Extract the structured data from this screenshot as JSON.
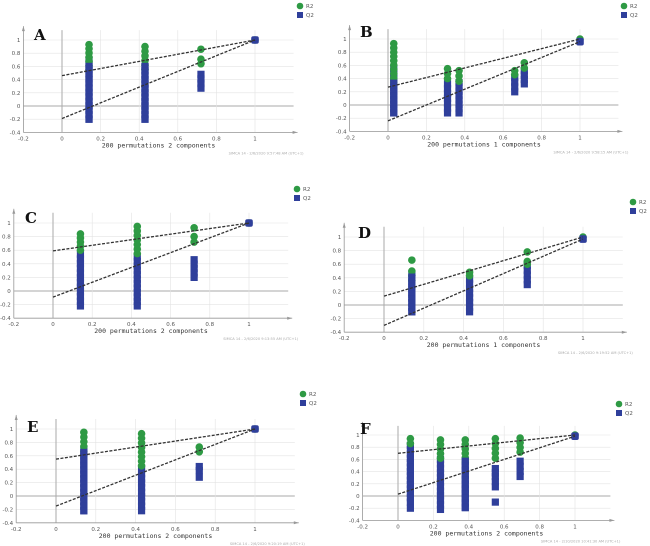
{
  "figure_title": "",
  "colors": {
    "r2": "#2e9a44",
    "q2": "#2f3f9b",
    "grid": "#e3e3e3",
    "axis": "#999999",
    "line": "#333333"
  },
  "legend": {
    "r2_label": "R2",
    "q2_label": "Q2"
  },
  "chart_data": [
    {
      "panel": "A",
      "type": "scatter",
      "xlabel": "200 permutations 2 components",
      "watermark": "SIMCA 14 - 2/6/2020 9:57:48 AM (UTC+1)",
      "xlim": [
        -0.2,
        1.2
      ],
      "ylim": [
        -0.4,
        1.15
      ],
      "xticks": [
        "-0.2",
        "0",
        "0.2",
        "0.4",
        "0.6",
        "0.8",
        "1"
      ],
      "yticks": [
        "-0.4",
        "-0.2",
        "0",
        "0.2",
        "0.4",
        "0.6",
        "0.8",
        "1"
      ],
      "legend_position": "top-right",
      "r2_intercept": 0.46,
      "q2_intercept": -0.19,
      "series": [
        {
          "name": "R2",
          "clusters": [
            {
              "x": 0.14,
              "ymin": 0.55,
              "ymax": 0.93
            },
            {
              "x": 0.43,
              "ymin": 0.55,
              "ymax": 0.9
            },
            {
              "x": 0.72,
              "ymin": 0.64,
              "ymax": 0.71
            },
            {
              "x": 0.72,
              "ymin": 0.86,
              "ymax": 0.86
            },
            {
              "x": 1.0,
              "ymin": 1.0,
              "ymax": 1.0
            }
          ]
        },
        {
          "name": "Q2",
          "clusters": [
            {
              "x": 0.14,
              "ymin": -0.2,
              "ymax": 0.7
            },
            {
              "x": 0.43,
              "ymin": -0.2,
              "ymax": 0.6
            },
            {
              "x": 0.72,
              "ymin": 0.27,
              "ymax": 0.48
            },
            {
              "x": 1.0,
              "ymin": 1.0,
              "ymax": 1.0
            }
          ]
        }
      ]
    },
    {
      "panel": "B",
      "type": "scatter",
      "xlabel": "200 permutations 1 components",
      "watermark": "SIMCA 14 - 2/6/2020 9:58:15 AM (UTC+1)",
      "xlim": [
        -0.2,
        1.2
      ],
      "ylim": [
        -0.4,
        1.15
      ],
      "xticks": [
        "-0.2",
        "0",
        "0.2",
        "0.4",
        "0.6",
        "0.8",
        "1"
      ],
      "yticks": [
        "-0.4",
        "-0.2",
        "0",
        "0.2",
        "0.4",
        "0.6",
        "0.8",
        "1"
      ],
      "legend_position": "top-right",
      "r2_intercept": 0.27,
      "q2_intercept": -0.24,
      "series": [
        {
          "name": "R2",
          "clusters": [
            {
              "x": 0.03,
              "ymin": 0.28,
              "ymax": 0.93
            },
            {
              "x": 0.31,
              "ymin": 0.4,
              "ymax": 0.55
            },
            {
              "x": 0.37,
              "ymin": 0.36,
              "ymax": 0.52
            },
            {
              "x": 0.66,
              "ymin": 0.46,
              "ymax": 0.52
            },
            {
              "x": 0.71,
              "ymin": 0.56,
              "ymax": 0.64
            },
            {
              "x": 1.0,
              "ymin": 1.0,
              "ymax": 1.0
            }
          ]
        },
        {
          "name": "Q2",
          "clusters": [
            {
              "x": 0.03,
              "ymin": -0.12,
              "ymax": 0.55
            },
            {
              "x": 0.31,
              "ymin": -0.12,
              "ymax": 0.32
            },
            {
              "x": 0.37,
              "ymin": -0.12,
              "ymax": 0.34
            },
            {
              "x": 0.66,
              "ymin": 0.2,
              "ymax": 0.42
            },
            {
              "x": 0.71,
              "ymin": 0.32,
              "ymax": 0.52
            },
            {
              "x": 1.0,
              "ymin": 0.96,
              "ymax": 0.96
            }
          ]
        }
      ]
    },
    {
      "panel": "C",
      "type": "scatter",
      "xlabel": "200 permutations 2 components",
      "watermark": "SIMCA 14 - 2/6/2020 9:13:55 AM (UTC+1)",
      "xlim": [
        -0.2,
        1.2
      ],
      "ylim": [
        -0.4,
        1.15
      ],
      "xticks": [
        "-0.2",
        "0",
        "0.2",
        "0.4",
        "0.6",
        "0.8",
        "1"
      ],
      "yticks": [
        "-0.4",
        "-0.2",
        "0",
        "0.2",
        "0.4",
        "0.6",
        "0.8",
        "1"
      ],
      "legend_position": "top-right",
      "r2_intercept": 0.59,
      "q2_intercept": -0.09,
      "series": [
        {
          "name": "R2",
          "clusters": [
            {
              "x": 0.14,
              "ymin": 0.6,
              "ymax": 0.84
            },
            {
              "x": 0.43,
              "ymin": 0.55,
              "ymax": 0.95
            },
            {
              "x": 0.72,
              "ymin": 0.72,
              "ymax": 0.8
            },
            {
              "x": 0.72,
              "ymin": 0.93,
              "ymax": 0.93
            },
            {
              "x": 1.0,
              "ymin": 1.0,
              "ymax": 1.0
            }
          ]
        },
        {
          "name": "Q2",
          "clusters": [
            {
              "x": 0.14,
              "ymin": -0.22,
              "ymax": 0.54
            },
            {
              "x": 0.43,
              "ymin": -0.22,
              "ymax": 0.5
            },
            {
              "x": 0.72,
              "ymin": 0.2,
              "ymax": 0.46
            },
            {
              "x": 1.0,
              "ymin": 1.0,
              "ymax": 1.0
            }
          ]
        }
      ]
    },
    {
      "panel": "D",
      "type": "scatter",
      "xlabel": "200 permutations 1 components",
      "watermark": "SIMCA 14 - 2/6/2020 9:19:52 AM (UTC+1)",
      "xlim": [
        -0.2,
        1.2
      ],
      "ylim": [
        -0.4,
        1.15
      ],
      "xticks": [
        "-0.2",
        "0",
        "0.2",
        "0.4",
        "0.6",
        "0.8",
        "1"
      ],
      "yticks": [
        "-0.4",
        "-0.2",
        "0",
        "0.2",
        "0.4",
        "0.6",
        "0.8",
        "1"
      ],
      "legend_position": "top-right",
      "r2_intercept": 0.13,
      "q2_intercept": -0.3,
      "series": [
        {
          "name": "R2",
          "clusters": [
            {
              "x": 0.14,
              "ymin": 0.36,
              "ymax": 0.5
            },
            {
              "x": 0.14,
              "ymin": 0.66,
              "ymax": 0.66
            },
            {
              "x": 0.43,
              "ymin": 0.43,
              "ymax": 0.48
            },
            {
              "x": 0.72,
              "ymin": 0.6,
              "ymax": 0.64
            },
            {
              "x": 0.72,
              "ymin": 0.78,
              "ymax": 0.78
            },
            {
              "x": 1.0,
              "ymin": 1.0,
              "ymax": 1.0
            }
          ]
        },
        {
          "name": "Q2",
          "clusters": [
            {
              "x": 0.14,
              "ymin": -0.1,
              "ymax": 0.46
            },
            {
              "x": 0.43,
              "ymin": -0.1,
              "ymax": 0.38
            },
            {
              "x": 0.72,
              "ymin": 0.3,
              "ymax": 0.58
            },
            {
              "x": 1.0,
              "ymin": 0.97,
              "ymax": 0.97
            }
          ]
        }
      ]
    },
    {
      "panel": "E",
      "type": "scatter",
      "xlabel": "200 permutations 2 components",
      "watermark": "SIMCA 14 - 2/6/2020 9:20:19 AM (UTC+1)",
      "xlim": [
        -0.2,
        1.2
      ],
      "ylim": [
        -0.4,
        1.15
      ],
      "xticks": [
        "-0.2",
        "0",
        "0.2",
        "0.4",
        "0.6",
        "0.8",
        "1"
      ],
      "yticks": [
        "-0.4",
        "-0.2",
        "0",
        "0.2",
        "0.4",
        "0.6",
        "0.8",
        "1"
      ],
      "legend_position": "top-right",
      "r2_intercept": 0.55,
      "q2_intercept": -0.15,
      "series": [
        {
          "name": "R2",
          "clusters": [
            {
              "x": 0.14,
              "ymin": 0.6,
              "ymax": 0.95
            },
            {
              "x": 0.43,
              "ymin": 0.45,
              "ymax": 0.93
            },
            {
              "x": 0.72,
              "ymin": 0.66,
              "ymax": 0.73
            },
            {
              "x": 1.0,
              "ymin": 1.0,
              "ymax": 1.0
            }
          ]
        },
        {
          "name": "Q2",
          "clusters": [
            {
              "x": 0.14,
              "ymin": -0.22,
              "ymax": 0.68
            },
            {
              "x": 0.43,
              "ymin": -0.22,
              "ymax": 0.4
            },
            {
              "x": 0.72,
              "ymin": 0.38,
              "ymax": 0.44
            },
            {
              "x": 0.72,
              "ymin": 0.28,
              "ymax": 0.28
            },
            {
              "x": 1.0,
              "ymin": 1.0,
              "ymax": 1.0
            }
          ]
        }
      ]
    },
    {
      "panel": "F",
      "type": "scatter",
      "xlabel": "200 permutations 2 components",
      "watermark": "SIMCA 14 - 2/10/2020 10:41:30 AM (UTC+1)",
      "xlim": [
        -0.2,
        1.2
      ],
      "ylim": [
        -0.4,
        1.15
      ],
      "xticks": [
        "-0.2",
        "0",
        "0.2",
        "0.4",
        "0.6",
        "0.8",
        "1"
      ],
      "yticks": [
        "-0.4",
        "-0.2",
        "0",
        "0.2",
        "0.4",
        "0.6",
        "0.8",
        "1"
      ],
      "legend_position": "top-right",
      "r2_intercept": 0.7,
      "q2_intercept": 0.03,
      "series": [
        {
          "name": "R2",
          "clusters": [
            {
              "x": 0.07,
              "ymin": 0.86,
              "ymax": 0.94
            },
            {
              "x": 0.24,
              "ymin": 0.62,
              "ymax": 0.92
            },
            {
              "x": 0.38,
              "ymin": 0.55,
              "ymax": 0.92
            },
            {
              "x": 0.55,
              "ymin": 0.62,
              "ymax": 0.94
            },
            {
              "x": 0.69,
              "ymin": 0.72,
              "ymax": 0.95
            },
            {
              "x": 1.0,
              "ymin": 1.0,
              "ymax": 1.0
            }
          ]
        },
        {
          "name": "Q2",
          "clusters": [
            {
              "x": 0.07,
              "ymin": -0.1,
              "ymax": 0.83
            },
            {
              "x": 0.07,
              "ymin": -0.2,
              "ymax": -0.2
            },
            {
              "x": 0.24,
              "ymin": -0.22,
              "ymax": 0.6
            },
            {
              "x": 0.38,
              "ymin": -0.19,
              "ymax": 0.57
            },
            {
              "x": 0.55,
              "ymin": 0.15,
              "ymax": 0.32
            },
            {
              "x": 0.55,
              "ymin": 0.38,
              "ymax": 0.45
            },
            {
              "x": 0.55,
              "ymin": -0.1,
              "ymax": -0.1
            },
            {
              "x": 0.69,
              "ymin": 0.32,
              "ymax": 0.57
            },
            {
              "x": 1.0,
              "ymin": 0.98,
              "ymax": 0.98
            }
          ]
        }
      ]
    }
  ]
}
